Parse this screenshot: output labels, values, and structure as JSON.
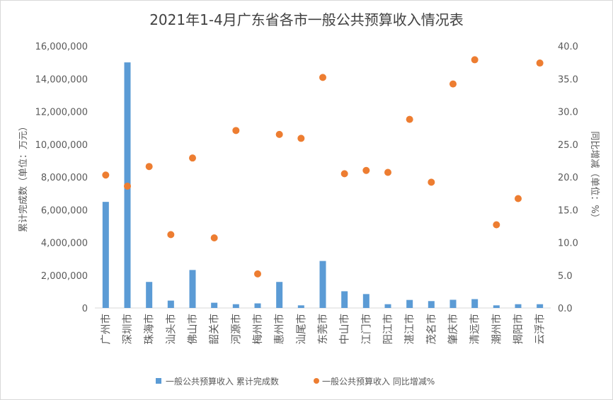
{
  "chart_data": {
    "type": "bar",
    "title": "2021年1-4月广东省各市一般公共预算收入情况表",
    "ylabel": "累计完成数（单位：万元）",
    "y2label": "同比增减（单位：%）",
    "ylim": [
      0,
      16000000
    ],
    "y2lim": [
      0,
      40
    ],
    "y_ticks": [
      "0",
      "2,000,000",
      "4,000,000",
      "6,000,000",
      "8,000,000",
      "10,000,000",
      "12,000,000",
      "14,000,000",
      "16,000,000"
    ],
    "y2_ticks": [
      "0.0",
      "5.0",
      "10.0",
      "15.0",
      "20.0",
      "25.0",
      "30.0",
      "35.0",
      "40.0"
    ],
    "grid": false,
    "legend_position": "bottom",
    "colors": {
      "bar": "#5b9bd5",
      "dot": "#ed7d31"
    },
    "categories": [
      "广州市",
      "深圳市",
      "珠海市",
      "汕头市",
      "佛山市",
      "韶关市",
      "河源市",
      "梅州市",
      "惠州市",
      "汕尾市",
      "东莞市",
      "中山市",
      "江门市",
      "阳江市",
      "湛江市",
      "茂名市",
      "肇庆市",
      "清远市",
      "潮州市",
      "揭阳市",
      "云浮市"
    ],
    "series": [
      {
        "name": "一般公共预算收入 累计完成数",
        "type": "bar",
        "axis": "left",
        "values": [
          6480000,
          15000000,
          1590000,
          450000,
          2320000,
          320000,
          230000,
          280000,
          1590000,
          160000,
          2870000,
          1020000,
          850000,
          230000,
          490000,
          420000,
          500000,
          540000,
          160000,
          230000,
          230000
        ]
      },
      {
        "name": "一般公共预算收入 同比增减%",
        "type": "scatter",
        "axis": "right",
        "values": [
          20.3,
          18.6,
          21.6,
          11.2,
          22.9,
          10.7,
          27.1,
          5.2,
          26.5,
          25.9,
          35.2,
          20.5,
          21.0,
          20.7,
          28.8,
          19.2,
          34.2,
          37.9,
          12.7,
          16.7,
          37.4
        ]
      }
    ]
  }
}
